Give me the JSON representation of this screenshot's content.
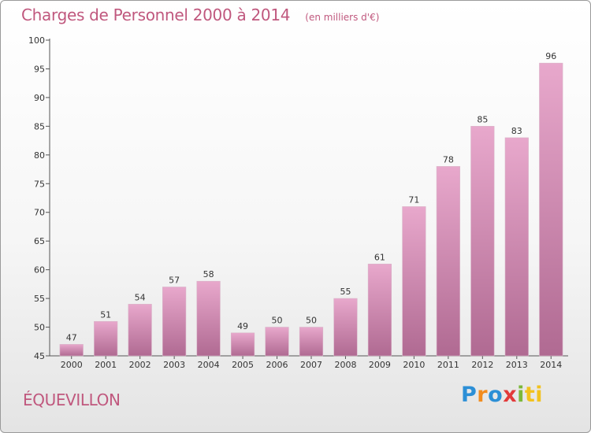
{
  "header": {
    "title": "Charges de Personnel 2000 à 2014",
    "subtitle": "(en milliers d'€)"
  },
  "footer": {
    "commune": "ÉQUEVILLON",
    "logo_letters": [
      "P",
      "r",
      "o",
      "x",
      "i",
      "ti"
    ]
  },
  "colors": {
    "accent": "#c0587e",
    "bar_top": "#e8a8cc",
    "bar_bottom": "#b06a92"
  },
  "chart_data": {
    "type": "bar",
    "categories": [
      "2000",
      "2001",
      "2002",
      "2003",
      "2004",
      "2005",
      "2006",
      "2007",
      "2008",
      "2009",
      "2010",
      "2011",
      "2012",
      "2013",
      "2014"
    ],
    "values": [
      47,
      51,
      54,
      57,
      58,
      49,
      50,
      50,
      55,
      61,
      71,
      78,
      85,
      83,
      96
    ],
    "title": "Charges de Personnel 2000 à 2014",
    "subtitle": "(en milliers d'€)",
    "xlabel": "",
    "ylabel": "",
    "ylim": [
      45,
      100
    ],
    "yticks": [
      45,
      50,
      55,
      60,
      65,
      70,
      75,
      80,
      85,
      90,
      95,
      100
    ],
    "grid": false,
    "legend": "none"
  }
}
